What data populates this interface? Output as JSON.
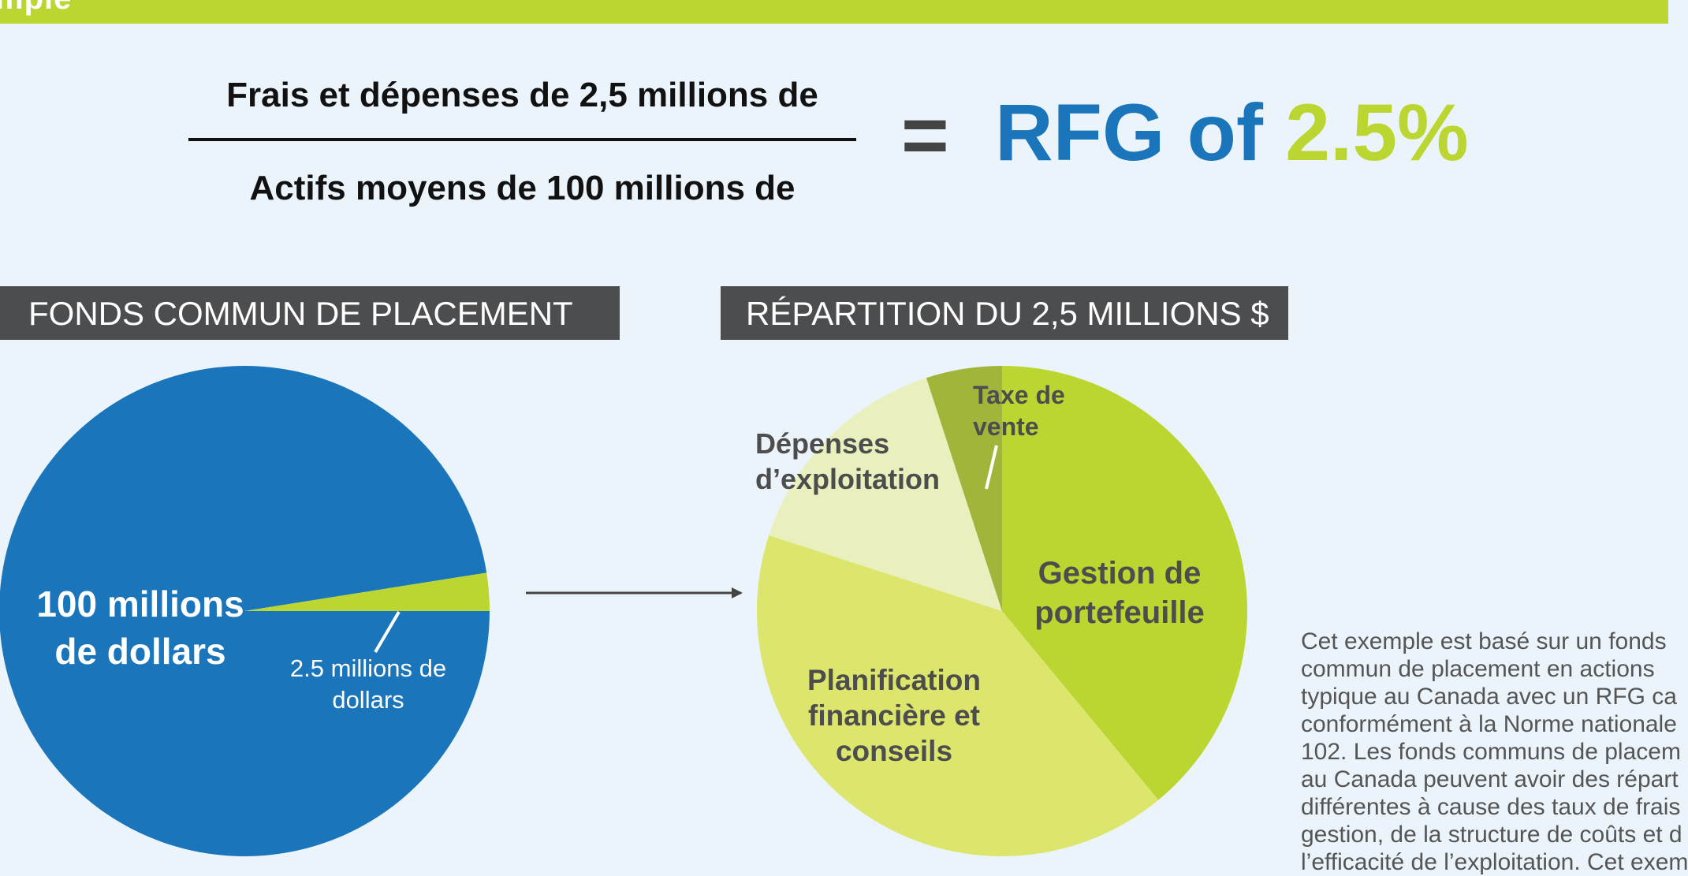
{
  "header": {
    "partial_title": "mple"
  },
  "formula": {
    "numerator": "Frais et dépenses de 2,5 millions de",
    "denominator": "Actifs moyens de 100 millions de",
    "equals": "=",
    "result_prefix": "RFG of",
    "result_value": "2.5%"
  },
  "sections": {
    "left_title": "FONDS COMMUN DE PLACEMENT",
    "right_title": "RÉPARTITION DU 2,5 MILLIONS $"
  },
  "note": {
    "lines": [
      "Cet exemple est basé sur un fonds",
      "commun de placement en actions",
      "typique au Canada avec un RFG ca",
      "conformément à la Norme nationale",
      "102. Les fonds communs de placem",
      "au Canada peuvent avoir des répart",
      "différentes à cause des taux de frais",
      "gestion, de la structure de coûts et d",
      "l’efficacité de l’exploitation. Cet exem"
    ]
  },
  "chart_data": [
    {
      "type": "pie",
      "title": "FONDS COMMUN DE PLACEMENT",
      "slices": [
        {
          "label_lines": [
            "100 millions",
            "de dollars"
          ],
          "value": 97.5,
          "color": "#1b75bb"
        },
        {
          "label_lines": [
            "2.5 millions de",
            "dollars"
          ],
          "value": 2.5,
          "color": "#bcd631"
        }
      ]
    },
    {
      "type": "pie",
      "title": "RÉPARTITION DU 2,5 MILLIONS $",
      "slices": [
        {
          "label_lines": [
            "Gestion de",
            "portefeuille"
          ],
          "value": 39,
          "color": "#bcd631"
        },
        {
          "label_lines": [
            "Planification",
            "financière et",
            "conseils"
          ],
          "value": 41,
          "color": "#dce66c"
        },
        {
          "label_lines": [
            "Dépenses",
            "d’exploitation"
          ],
          "value": 15,
          "color": "#e9f0bd"
        },
        {
          "label_lines": [
            "Taxe de",
            "vente"
          ],
          "value": 5,
          "color": "#a2b53b"
        }
      ]
    }
  ]
}
